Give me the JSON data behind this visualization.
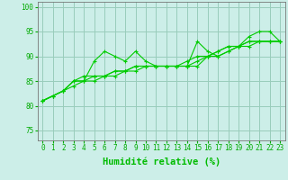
{
  "x": [
    0,
    1,
    2,
    3,
    4,
    5,
    6,
    7,
    8,
    9,
    10,
    11,
    12,
    13,
    14,
    15,
    16,
    17,
    18,
    19,
    20,
    21,
    22,
    23
  ],
  "lines": [
    [
      81,
      82,
      83,
      85,
      85,
      89,
      91,
      90,
      89,
      91,
      89,
      88,
      88,
      88,
      88,
      93,
      91,
      90,
      91,
      92,
      94,
      95,
      95,
      93
    ],
    [
      81,
      82,
      83,
      85,
      86,
      86,
      86,
      87,
      87,
      88,
      88,
      88,
      88,
      88,
      88,
      88,
      90,
      91,
      92,
      92,
      93,
      93,
      93,
      93
    ],
    [
      81,
      82,
      83,
      84,
      85,
      85,
      86,
      86,
      87,
      87,
      88,
      88,
      88,
      88,
      88,
      89,
      90,
      90,
      91,
      92,
      92,
      93,
      93,
      93
    ],
    [
      81,
      82,
      83,
      85,
      85,
      86,
      86,
      87,
      87,
      88,
      88,
      88,
      88,
      88,
      89,
      90,
      90,
      91,
      92,
      92,
      93,
      93,
      93,
      93
    ]
  ],
  "line_color": "#00cc00",
  "marker": "+",
  "marker_size": 3,
  "xlabel": "Humidité relative (%)",
  "xlabel_color": "#00bb00",
  "ylabel_ticks": [
    75,
    80,
    85,
    90,
    95,
    100
  ],
  "xlim": [
    -0.5,
    23.5
  ],
  "ylim": [
    73,
    101
  ],
  "bg_color": "#cceee8",
  "grid_color": "#99ccbb",
  "tick_color": "#00aa00",
  "tick_fontsize": 5.5,
  "xlabel_fontsize": 7.5,
  "title": ""
}
